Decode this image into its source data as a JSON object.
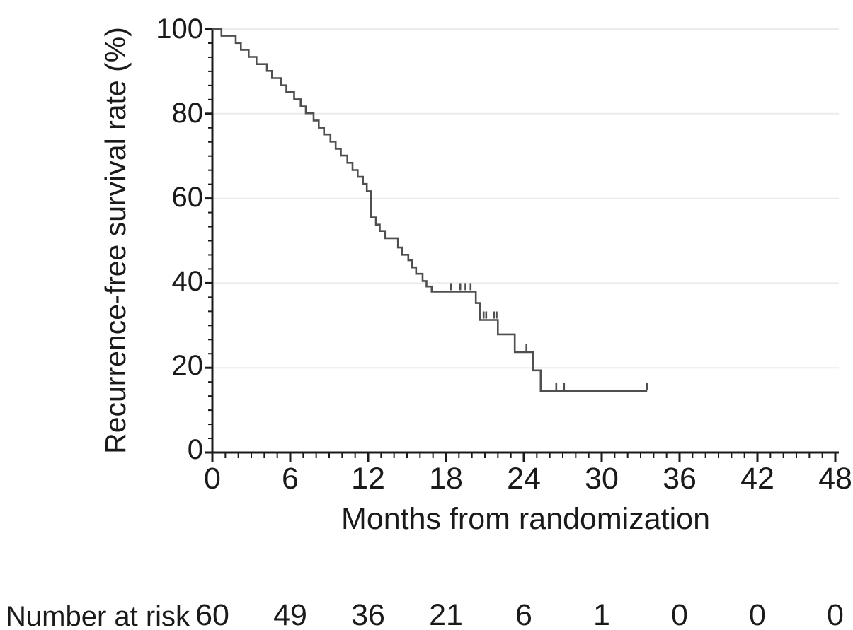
{
  "chart_data": {
    "type": "line",
    "subtype": "kaplan-meier-step-curve",
    "title": "",
    "xlabel": "Months from randomization",
    "ylabel": "Recurrence-free survival rate (%)",
    "xlim": [
      0,
      48
    ],
    "ylim": [
      0,
      100
    ],
    "x_ticks": [
      0,
      6,
      12,
      18,
      24,
      30,
      36,
      42,
      48
    ],
    "y_ticks": [
      0,
      20,
      40,
      60,
      80,
      100
    ],
    "grid": "horizontal gridlines at 20,40,60,80,100",
    "legend": "none",
    "colors": {
      "curve": "#4f4f4f",
      "axis": "#1a1a1a",
      "grid": "#ebebeb",
      "text": "#1a1a1a",
      "background": "#ffffff"
    },
    "steps_note": "each entry is [month, survival_percent_after_drop]",
    "steps": [
      [
        0.7,
        98.4
      ],
      [
        1.8,
        96.7
      ],
      [
        2.2,
        95.1
      ],
      [
        2.8,
        93.4
      ],
      [
        3.4,
        91.7
      ],
      [
        4.2,
        90.1
      ],
      [
        4.6,
        88.4
      ],
      [
        5.3,
        86.7
      ],
      [
        5.7,
        85.1
      ],
      [
        6.3,
        83.4
      ],
      [
        6.8,
        81.7
      ],
      [
        7.2,
        80.1
      ],
      [
        7.8,
        78.4
      ],
      [
        8.2,
        76.7
      ],
      [
        8.6,
        75.1
      ],
      [
        9.1,
        73.4
      ],
      [
        9.5,
        71.7
      ],
      [
        9.9,
        70.1
      ],
      [
        10.4,
        68.4
      ],
      [
        10.8,
        66.7
      ],
      [
        11.2,
        65.1
      ],
      [
        11.6,
        63.4
      ],
      [
        11.9,
        61.7
      ],
      [
        12.2,
        55.5
      ],
      [
        12.6,
        53.8
      ],
      [
        12.9,
        52.3
      ],
      [
        13.3,
        50.6
      ],
      [
        14.3,
        48.4
      ],
      [
        14.6,
        46.7
      ],
      [
        15.1,
        45.4
      ],
      [
        15.4,
        43.7
      ],
      [
        15.7,
        42.2
      ],
      [
        16.2,
        40.5
      ],
      [
        16.5,
        39.2
      ],
      [
        16.9,
        38.0
      ],
      [
        20.3,
        35.3
      ],
      [
        20.6,
        31.3
      ],
      [
        22.0,
        27.9
      ],
      [
        23.3,
        23.7
      ],
      [
        24.7,
        19.4
      ],
      [
        25.3,
        14.5
      ]
    ],
    "curve_start": [
      0,
      100
    ],
    "curve_end_month": 33.5,
    "censor_marks": [
      [
        18.4,
        38.0
      ],
      [
        19.1,
        38.0
      ],
      [
        19.5,
        38.0
      ],
      [
        19.9,
        38.0
      ],
      [
        20.9,
        31.3
      ],
      [
        21.1,
        31.3
      ],
      [
        21.7,
        31.3
      ],
      [
        21.9,
        31.3
      ],
      [
        24.2,
        23.7
      ],
      [
        26.5,
        14.5
      ],
      [
        27.1,
        14.5
      ],
      [
        33.5,
        14.5
      ]
    ],
    "at_risk": {
      "label": "Number at risk",
      "months": [
        0,
        6,
        12,
        18,
        24,
        30,
        36,
        42,
        48
      ],
      "counts": [
        60,
        49,
        36,
        21,
        6,
        1,
        0,
        0,
        0
      ]
    }
  }
}
